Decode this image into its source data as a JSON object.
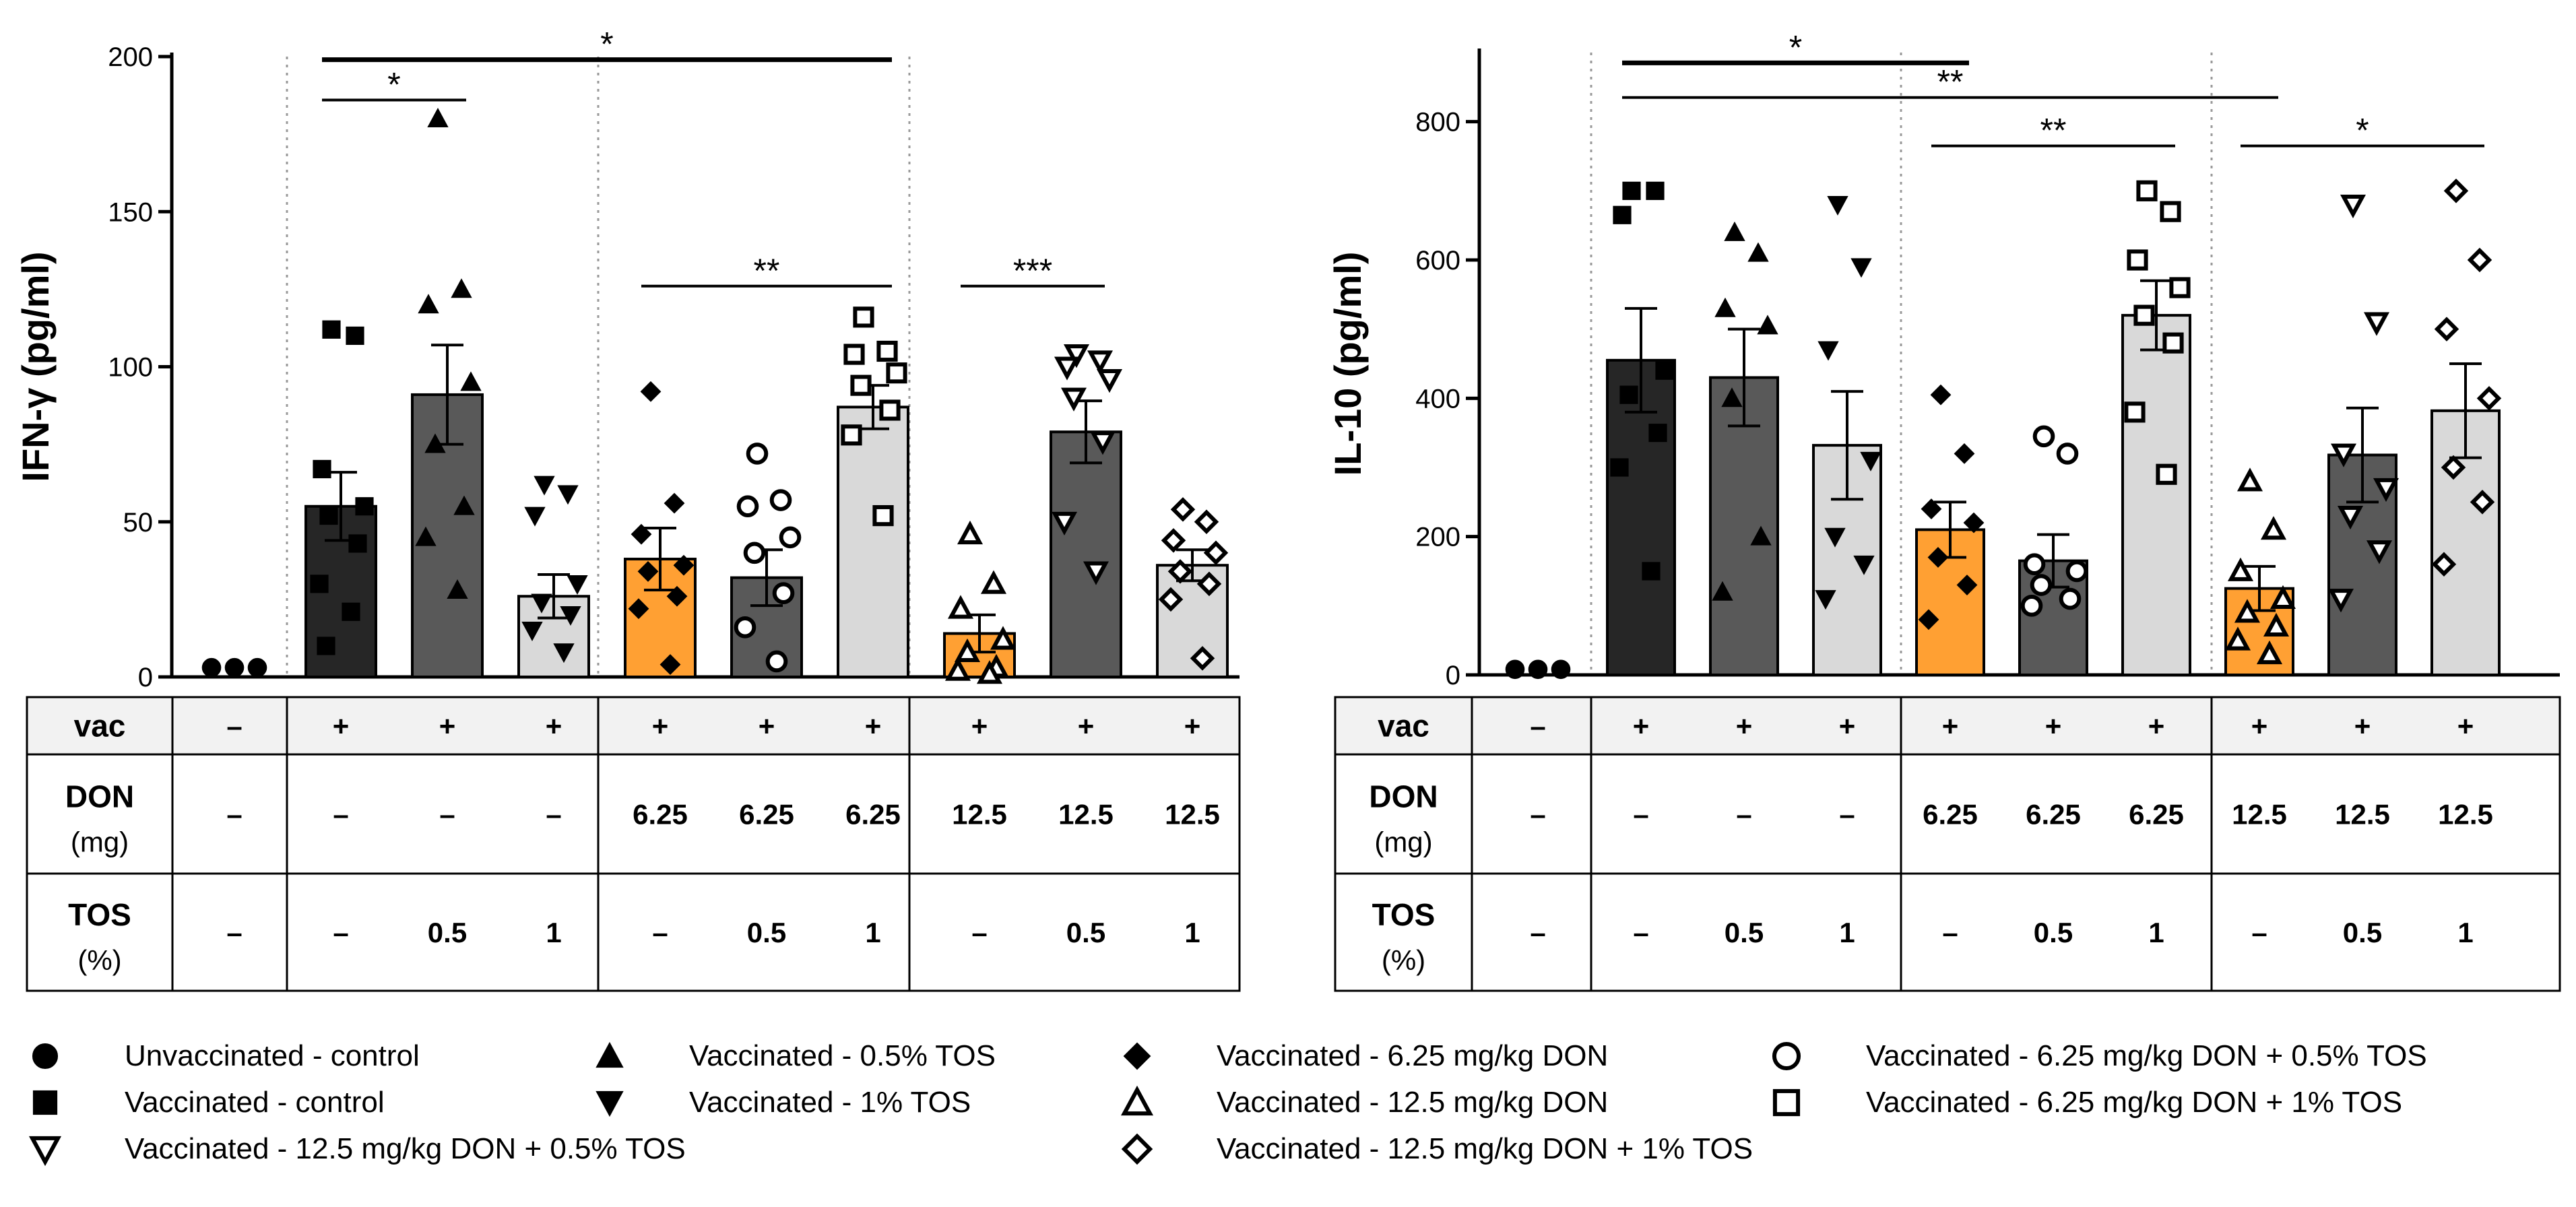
{
  "chart_data": [
    {
      "type": "bar",
      "ylabel": "IFN-γ (pg/ml)",
      "ylim": [
        0,
        200
      ],
      "yticks": [
        0,
        50,
        100,
        150,
        200
      ],
      "groups": [
        "Unvaccinated - control",
        "Vaccinated - control",
        "Vaccinated - 0.5% TOS",
        "Vaccinated - 1% TOS",
        "Vaccinated - 6.25 mg/kg DON",
        "Vaccinated - 6.25 mg/kg DON + 0.5% TOS",
        "Vaccinated - 6.25 mg/kg DON + 1% TOS",
        "Vaccinated - 12.5 mg/kg DON",
        "Vaccinated - 12.5 mg/kg DON + 0.5% TOS",
        "Vaccinated - 12.5 mg/kg DON + 1% TOS"
      ],
      "values": [
        3,
        55,
        91,
        26,
        38,
        32,
        87,
        14,
        79,
        36
      ],
      "errors": [
        0,
        11,
        16,
        7,
        10,
        9,
        7,
        6,
        10,
        5
      ],
      "points": [
        [
          3,
          3,
          3
        ],
        [
          112,
          110,
          67,
          55,
          52,
          43,
          30,
          21,
          10
        ],
        [
          180,
          125,
          120,
          95,
          75,
          55,
          45,
          28
        ],
        [
          62,
          59,
          52,
          30,
          24,
          20,
          15,
          8
        ],
        [
          92,
          56,
          46,
          36,
          34,
          26,
          22,
          4
        ],
        [
          72,
          57,
          55,
          45,
          40,
          27,
          16,
          5
        ],
        [
          116,
          105,
          104,
          98,
          94,
          86,
          78,
          52
        ],
        [
          46,
          30,
          22,
          12,
          8,
          3,
          2,
          1
        ],
        [
          104,
          102,
          100,
          96,
          90,
          76,
          50,
          34
        ],
        [
          54,
          50,
          44,
          40,
          34,
          30,
          25,
          6
        ]
      ],
      "significance": [
        {
          "from": 1,
          "to": 6,
          "label": "*",
          "y": 199
        },
        {
          "from": 1,
          "to": 2,
          "label": "*",
          "y": 186
        },
        {
          "from": 4,
          "to": 6,
          "label": "**",
          "y": 126
        },
        {
          "from": 7,
          "to": 8,
          "label": "***",
          "y": 126
        }
      ]
    },
    {
      "type": "bar",
      "ylabel": "IL-10 (pg/ml)",
      "ylim": [
        0,
        900
      ],
      "yticks": [
        0,
        200,
        400,
        600,
        800
      ],
      "groups": [
        "Unvaccinated - control",
        "Vaccinated - control",
        "Vaccinated - 0.5% TOS",
        "Vaccinated - 1% TOS",
        "Vaccinated - 6.25 mg/kg DON",
        "Vaccinated - 6.25 mg/kg DON + 0.5% TOS",
        "Vaccinated - 6.25 mg/kg DON + 1% TOS",
        "Vaccinated - 12.5 mg/kg DON",
        "Vaccinated - 12.5 mg/kg DON + 0.5% TOS",
        "Vaccinated - 12.5 mg/kg DON + 1% TOS"
      ],
      "values": [
        8,
        455,
        430,
        332,
        210,
        165,
        520,
        125,
        318,
        382
      ],
      "errors": [
        0,
        75,
        70,
        78,
        40,
        38,
        50,
        32,
        68,
        68
      ],
      "points": [
        [
          8,
          8,
          8
        ],
        [
          700,
          700,
          665,
          440,
          405,
          350,
          300,
          150
        ],
        [
          640,
          610,
          530,
          505,
          400,
          200,
          120
        ],
        [
          680,
          590,
          470,
          310,
          200,
          160,
          110
        ],
        [
          405,
          320,
          240,
          220,
          170,
          130,
          80
        ],
        [
          345,
          320,
          160,
          150,
          130,
          110,
          100
        ],
        [
          700,
          670,
          600,
          560,
          520,
          480,
          380,
          290
        ],
        [
          280,
          210,
          150,
          110,
          90,
          70,
          50,
          30
        ],
        [
          680,
          510,
          320,
          270,
          230,
          180,
          110
        ],
        [
          700,
          600,
          500,
          400,
          300,
          250,
          160
        ]
      ],
      "significance": [
        {
          "from": 1,
          "to": 4,
          "label": "*",
          "y": 885
        },
        {
          "from": 1,
          "to": 7,
          "label": "**",
          "y": 835
        },
        {
          "from": 4,
          "to": 6,
          "label": "**",
          "y": 765
        },
        {
          "from": 7,
          "to": 9,
          "label": "*",
          "y": 765
        }
      ]
    }
  ],
  "bar_colors": [
    "#ffffff",
    "#262626",
    "#595959",
    "#d9d9d9",
    "#ffa033",
    "#595959",
    "#d9d9d9",
    "#ffa033",
    "#595959",
    "#d9d9d9"
  ],
  "markers": [
    "circle-filled",
    "square-filled",
    "triangle-filled",
    "triangle-down-filled",
    "diamond-filled",
    "circle-open",
    "square-open",
    "triangle-open",
    "triangle-down-open",
    "diamond-open"
  ],
  "table": {
    "row_labels": [
      {
        "main": "vac",
        "sub": ""
      },
      {
        "main": "DON",
        "sub": "(mg)"
      },
      {
        "main": "TOS",
        "sub": "(%)"
      }
    ],
    "rows": [
      [
        "–",
        "+",
        "+",
        "+",
        "+",
        "+",
        "+",
        "+",
        "+",
        "+"
      ],
      [
        "–",
        "–",
        "–",
        "–",
        "6.25",
        "6.25",
        "6.25",
        "12.5",
        "12.5",
        "12.5"
      ],
      [
        "–",
        "–",
        "0.5",
        "1",
        "–",
        "0.5",
        "1",
        "–",
        "0.5",
        "1"
      ]
    ]
  },
  "legend": [
    "Unvaccinated - control",
    "Vaccinated - control",
    "Vaccinated - 12.5 mg/kg DON + 0.5% TOS",
    "Vaccinated - 0.5% TOS",
    "Vaccinated - 1%    TOS",
    "Vaccinated - 6.25 mg/kg DON",
    "Vaccinated - 12.5 mg/kg DON",
    "Vaccinated - 12.5 mg/kg DON + 1%  TOS",
    "Vaccinated - 6.25 mg/kg DON + 0.5% TOS",
    "Vaccinated - 6.25 mg/kg DON + 1%    TOS"
  ],
  "legend_markers": [
    "circle-filled",
    "square-filled",
    "triangle-down-open",
    "triangle-filled",
    "triangle-down-filled",
    "diamond-filled",
    "triangle-open",
    "diamond-open",
    "circle-open",
    "square-open"
  ]
}
